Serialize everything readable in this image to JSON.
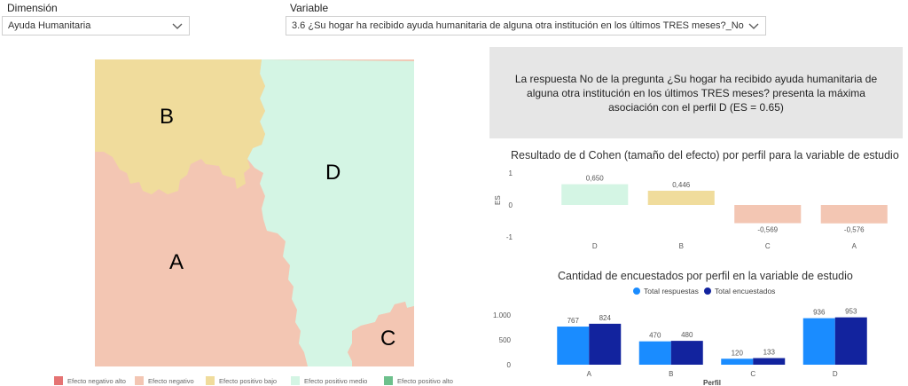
{
  "filters": {
    "dimension": {
      "label": "Dimensión",
      "value": "Ayuda Humanitaria"
    },
    "variable": {
      "label": "Variable",
      "value": "3.6 ¿Su hogar ha recibido ayuda humanitaria de alguna otra institución en los últimos TRES meses?_No"
    }
  },
  "map": {
    "region_labels": [
      "A",
      "B",
      "C",
      "D"
    ],
    "colors": {
      "negativo_alto": "#e57373",
      "negativo": "#f3c6b3",
      "positivo_bajo": "#f0dc9c",
      "positivo_medio": "#d4f5e4",
      "positivo_alto": "#6dc08c"
    },
    "legend": [
      {
        "label": "Efecto negativo alto",
        "color": "#e57373"
      },
      {
        "label": "Efecto negativo",
        "color": "#f3c6b3"
      },
      {
        "label": "Efecto positivo bajo",
        "color": "#f0dc9c"
      },
      {
        "label": "Efecto positivo medio",
        "color": "#d4f5e4"
      },
      {
        "label": "Efecto positivo alto",
        "color": "#6dc08c"
      }
    ]
  },
  "info": {
    "text": "La respuesta No de la pregunta ¿Su hogar ha recibido ayuda humanitaria de alguna otra institución en los últimos TRES meses? presenta la máxima asociación con el perfil D (ES = 0.65)"
  },
  "chart_data": [
    {
      "type": "bar",
      "title": "Resultado de d Cohen (tamaño del efecto) por perfil para la variable de estudio",
      "ylabel": "ES",
      "xlabel": "",
      "categories": [
        "D",
        "B",
        "C",
        "A"
      ],
      "values": [
        0.65,
        0.446,
        -0.569,
        -0.576
      ],
      "value_labels": [
        "0,650",
        "0,446",
        "-0,569",
        "-0,576"
      ],
      "colors": [
        "#d4f5e4",
        "#f0dc9c",
        "#f3c6b3",
        "#f3c6b3"
      ],
      "yticks": [
        "1",
        "0",
        "-1"
      ],
      "ylim": [
        -1,
        1
      ]
    },
    {
      "type": "bar",
      "title": "Cantidad de encuestados por perfil en la variable de estudio",
      "xlabel": "Perfil",
      "ylabel": "",
      "categories": [
        "A",
        "B",
        "C",
        "D"
      ],
      "series": [
        {
          "name": "Total respuestas",
          "color": "#1a8cff",
          "values": [
            767,
            470,
            120,
            936
          ]
        },
        {
          "name": "Total encuestados",
          "color": "#12239e",
          "values": [
            824,
            480,
            133,
            953
          ]
        }
      ],
      "yticks": [
        "1.000",
        "500",
        "0"
      ],
      "ylim": [
        0,
        1000
      ]
    }
  ]
}
